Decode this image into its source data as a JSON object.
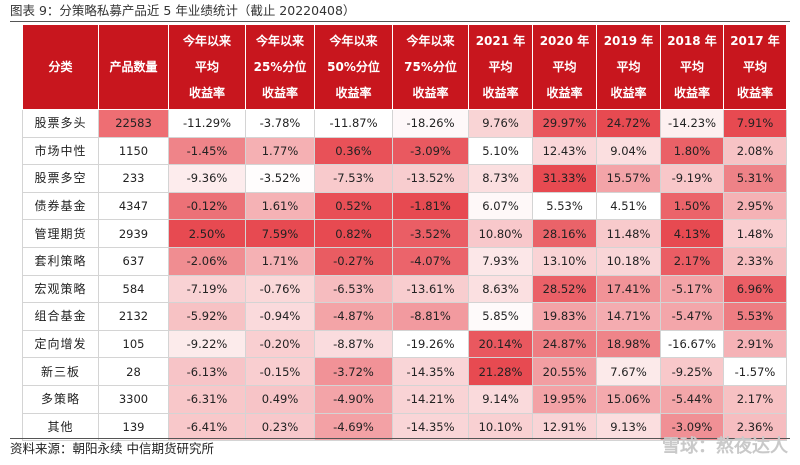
{
  "caption": "图表 9：分策略私募产品近 5 年业绩统计（截止 20220408）",
  "source": "资料来源：朝阳永续 中信期货研究所",
  "watermark": "雪球：熬夜达人",
  "colors": {
    "header_bg": "#c8161e",
    "cell_max": "#e8404a",
    "cell_min": "#fde9e9"
  },
  "headers": [
    [
      "分类"
    ],
    [
      "产品数量"
    ],
    [
      "今年以来",
      "平均",
      "收益率"
    ],
    [
      "今年以来",
      "25%分位",
      "收益率"
    ],
    [
      "今年以来",
      "50%分位",
      "收益率"
    ],
    [
      "今年以来",
      "75%分位",
      "收益率"
    ],
    [
      "2021 年",
      "平均",
      "收益率"
    ],
    [
      "2020 年",
      "平均",
      "收益率"
    ],
    [
      "2019 年",
      "平均",
      "收益率"
    ],
    [
      "2018 年",
      "平均",
      "收益率"
    ],
    [
      "2017 年",
      "平均",
      "收益率"
    ]
  ],
  "rows": [
    {
      "cat": "股票多头",
      "count": "22583",
      "vals": [
        "-11.29%",
        "-3.78%",
        "-11.87%",
        "-18.26%",
        "9.76%",
        "29.97%",
        "24.72%",
        "-14.23%",
        "7.91%"
      ]
    },
    {
      "cat": "市场中性",
      "count": "1150",
      "vals": [
        "-1.45%",
        "1.77%",
        "0.36%",
        "-3.09%",
        "5.10%",
        "12.43%",
        "9.04%",
        "1.80%",
        "2.08%"
      ]
    },
    {
      "cat": "股票多空",
      "count": "233",
      "vals": [
        "-9.36%",
        "-3.52%",
        "-7.53%",
        "-13.52%",
        "8.73%",
        "31.33%",
        "15.57%",
        "-9.19%",
        "5.31%"
      ]
    },
    {
      "cat": "债券基金",
      "count": "4347",
      "vals": [
        "-0.12%",
        "1.61%",
        "0.52%",
        "-1.81%",
        "6.07%",
        "5.53%",
        "4.51%",
        "1.50%",
        "2.95%"
      ]
    },
    {
      "cat": "管理期货",
      "count": "2939",
      "vals": [
        "2.50%",
        "7.59%",
        "0.82%",
        "-3.52%",
        "10.80%",
        "28.16%",
        "11.48%",
        "4.13%",
        "1.48%"
      ]
    },
    {
      "cat": "套利策略",
      "count": "637",
      "vals": [
        "-2.06%",
        "1.71%",
        "-0.27%",
        "-4.07%",
        "7.93%",
        "13.10%",
        "10.18%",
        "2.17%",
        "2.33%"
      ]
    },
    {
      "cat": "宏观策略",
      "count": "584",
      "vals": [
        "-7.19%",
        "-0.76%",
        "-6.53%",
        "-13.61%",
        "8.63%",
        "28.52%",
        "17.41%",
        "-5.17%",
        "6.96%"
      ]
    },
    {
      "cat": "组合基金",
      "count": "2132",
      "vals": [
        "-5.92%",
        "-0.94%",
        "-4.87%",
        "-8.81%",
        "5.85%",
        "19.83%",
        "14.71%",
        "-5.47%",
        "5.53%"
      ]
    },
    {
      "cat": "定向增发",
      "count": "105",
      "vals": [
        "-9.22%",
        "-0.20%",
        "-8.87%",
        "-19.26%",
        "20.14%",
        "24.87%",
        "18.98%",
        "-16.67%",
        "2.91%"
      ]
    },
    {
      "cat": "新三板",
      "count": "28",
      "vals": [
        "-6.13%",
        "-0.15%",
        "-3.72%",
        "-14.35%",
        "21.28%",
        "20.55%",
        "7.67%",
        "-9.25%",
        "-1.57%"
      ]
    },
    {
      "cat": "多策略",
      "count": "3300",
      "vals": [
        "-6.31%",
        "0.49%",
        "-4.90%",
        "-14.21%",
        "9.14%",
        "19.95%",
        "15.06%",
        "-5.44%",
        "2.17%"
      ]
    },
    {
      "cat": "其他",
      "count": "139",
      "vals": [
        "-6.41%",
        "0.23%",
        "-4.69%",
        "-14.35%",
        "10.10%",
        "12.91%",
        "9.13%",
        "-3.09%",
        "2.36%"
      ]
    }
  ]
}
